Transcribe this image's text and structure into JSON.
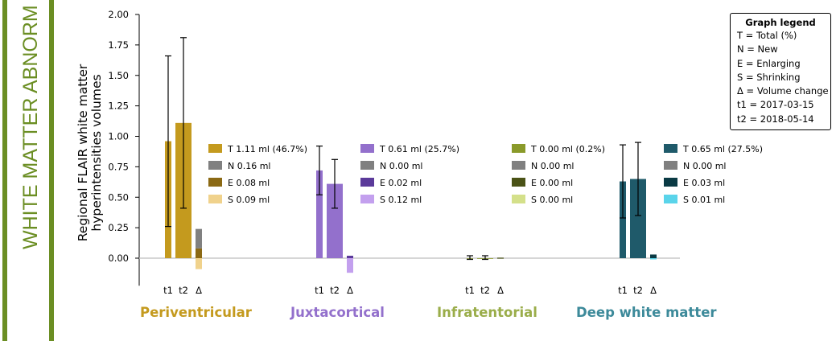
{
  "panel": {
    "title": "WHITE MATTER ABNORM",
    "color": "#6b8e23"
  },
  "chart_data": {
    "type": "bar",
    "ylabel": "Regional FLAIR white matter hyperintensities volumes",
    "ylim": [
      -0.2,
      2.0
    ],
    "yticks": [
      "2.00",
      "1.75",
      "1.50",
      "1.25",
      "1.00",
      "0.75",
      "0.50",
      "0.25",
      "0.00"
    ],
    "ytick_values": [
      2.0,
      1.75,
      1.5,
      1.25,
      1.0,
      0.75,
      0.5,
      0.25,
      0.0
    ],
    "bar_labels": [
      "t1",
      "t2",
      "Δ"
    ],
    "regions": [
      {
        "name": "Periventricular",
        "label_color": "#c49a1e",
        "t1": 0.96,
        "t1_err": [
          0.26,
          1.66
        ],
        "t2": 1.11,
        "t2_err": [
          0.41,
          1.81
        ],
        "delta": {
          "N": 0.16,
          "E": 0.08,
          "S": 0.09
        },
        "colors": {
          "T": "#c49a1e",
          "N": "#808080",
          "E": "#8b6914",
          "S": "#f0d28c"
        },
        "entries": [
          "T 1.11 ml (46.7%)",
          "N 0.16 ml",
          "E 0.08 ml",
          "S 0.09 ml"
        ]
      },
      {
        "name": "Juxtacortical",
        "label_color": "#9370cc",
        "t1": 0.72,
        "t1_err": [
          0.52,
          0.92
        ],
        "t2": 0.61,
        "t2_err": [
          0.41,
          0.81
        ],
        "delta": {
          "N": 0.0,
          "E": 0.02,
          "S": 0.12
        },
        "colors": {
          "T": "#9370cc",
          "N": "#808080",
          "E": "#5b3a9a",
          "S": "#c3a0ee"
        },
        "entries": [
          "T 0.61 ml (25.7%)",
          "N 0.00 ml",
          "E 0.02 ml",
          "S 0.12 ml"
        ]
      },
      {
        "name": "Infratentorial",
        "label_color": "#9aad4a",
        "t1": 0.0,
        "t1_err": [
          -0.01,
          0.02
        ],
        "t2": 0.0,
        "t2_err": [
          -0.01,
          0.02
        ],
        "delta": {
          "N": 0.0,
          "E": 0.0,
          "S": 0.0
        },
        "colors": {
          "T": "#8a9a2a",
          "N": "#808080",
          "E": "#4a5216",
          "S": "#d4e08a"
        },
        "entries": [
          "T 0.00 ml (0.2%)",
          "N 0.00 ml",
          "E 0.00 ml",
          "S 0.00 ml"
        ]
      },
      {
        "name": "Deep white matter",
        "label_color": "#3d8a9a",
        "t1": 0.63,
        "t1_err": [
          0.33,
          0.93
        ],
        "t2": 0.65,
        "t2_err": [
          0.35,
          0.95
        ],
        "delta": {
          "N": 0.0,
          "E": 0.03,
          "S": 0.01
        },
        "colors": {
          "T": "#1f5a6a",
          "N": "#808080",
          "E": "#0a3a44",
          "S": "#5ad4ea"
        },
        "entries": [
          "T 0.65 ml (27.5%)",
          "N 0.00 ml",
          "E 0.03 ml",
          "S 0.01 ml"
        ]
      }
    ],
    "legend": {
      "title": "Graph legend",
      "lines": [
        "T = Total (%)",
        "N = New",
        "E = Enlarging",
        "S = Shrinking",
        "Δ = Volume change",
        "t1 = 2017-03-15",
        "t2 = 2018-05-14"
      ]
    }
  }
}
